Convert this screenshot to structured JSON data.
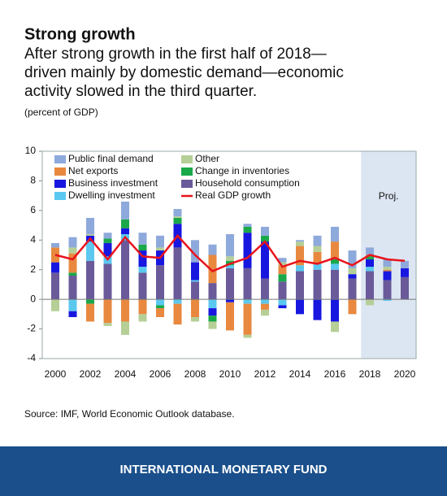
{
  "chart_data": {
    "type": "stacked-bar-line",
    "title": "Strong growth",
    "subtitle": [
      "After strong growth in the first half of 2018—",
      "driven mainly by domestic demand—economic",
      "activity slowed in the third quarter."
    ],
    "units": "(percent of GDP)",
    "annotation": "Proj.",
    "categories": [
      "2000",
      null,
      "2002",
      null,
      "2004",
      null,
      "2006",
      null,
      "2008",
      null,
      "2010",
      null,
      "2012",
      null,
      "2014",
      null,
      "2016",
      null,
      "2018",
      null,
      "2020"
    ],
    "series": [
      {
        "name": "Public final demand",
        "color": "#8ea9db",
        "values": [
          0.3,
          0.7,
          1.1,
          0.4,
          1.2,
          0.8,
          0.8,
          0.5,
          1.5,
          0.7,
          1.5,
          0.2,
          0.6,
          0.3,
          0.1,
          0.7,
          1.0,
          1.2,
          0.5,
          0.5,
          0.5
        ]
      },
      {
        "name": "Net exports",
        "color": "#e8893f",
        "values": [
          1.0,
          1.3,
          -1.2,
          -1.6,
          -1.5,
          -1.0,
          -0.6,
          -1.4,
          -1.2,
          1.9,
          -1.9,
          -2.1,
          -0.4,
          0.6,
          1.3,
          0.8,
          1.2,
          -1.0,
          0.1,
          0.1,
          0
        ]
      },
      {
        "name": "Business investment",
        "color": "#1717e0",
        "values": [
          0.7,
          -0.4,
          0.4,
          0.9,
          0.4,
          1.1,
          1.0,
          1.6,
          1.2,
          -0.5,
          -0.2,
          2.4,
          2.5,
          -0.2,
          -1.0,
          -1.4,
          -1.5,
          0.3,
          0.5,
          0.6,
          0.6
        ]
      },
      {
        "name": "Dwelling investment",
        "color": "#5bc8f0",
        "values": [
          0,
          -0.8,
          1.3,
          0.5,
          0.4,
          0.4,
          -0.4,
          -0.3,
          0.1,
          -0.6,
          0.2,
          -0.3,
          -0.3,
          -0.4,
          0.4,
          0.4,
          0.4,
          0,
          0.3,
          -0.1,
          0
        ]
      },
      {
        "name": "Other",
        "color": "#b5cf97",
        "values": [
          -0.8,
          0.4,
          0.1,
          -0.2,
          -0.9,
          -0.5,
          0.2,
          0.1,
          -0.3,
          -0.5,
          0.3,
          -0.2,
          -0.4,
          0.2,
          0.3,
          0.4,
          -0.7,
          0.4,
          -0.4,
          0.2,
          0
        ]
      },
      {
        "name": "Change in inventories",
        "color": "#1aa84a",
        "values": [
          0,
          0.2,
          -0.3,
          0.3,
          0.6,
          0.4,
          -0.2,
          0.4,
          0,
          -0.4,
          0.3,
          0.4,
          0.4,
          0.5,
          0,
          0,
          0.3,
          0,
          0.2,
          0,
          0
        ]
      },
      {
        "name": "Household consumption",
        "color": "#6a5a9a",
        "values": [
          1.8,
          1.6,
          2.6,
          2.4,
          4.0,
          1.8,
          2.3,
          3.5,
          1.2,
          1.1,
          2.1,
          2.1,
          1.4,
          1.2,
          1.9,
          2.0,
          2.0,
          1.4,
          1.9,
          1.3,
          1.5
        ]
      },
      {
        "name": "Real GDP growth",
        "color": "#e8141c",
        "type": "line",
        "values": [
          3.0,
          2.7,
          4.1,
          2.7,
          4.2,
          2.9,
          2.8,
          4.3,
          3.0,
          1.9,
          2.4,
          2.8,
          3.9,
          2.2,
          2.6,
          2.4,
          2.8,
          2.3,
          3.0,
          2.7,
          2.6
        ]
      }
    ],
    "ylim": [
      -4,
      10
    ],
    "yticks": [
      -4,
      -2,
      0,
      2,
      4,
      6,
      8,
      10
    ],
    "source": "Source: IMF, World Economic Outlook database.",
    "footer": "INTERNATIONAL MONETARY FUND"
  }
}
